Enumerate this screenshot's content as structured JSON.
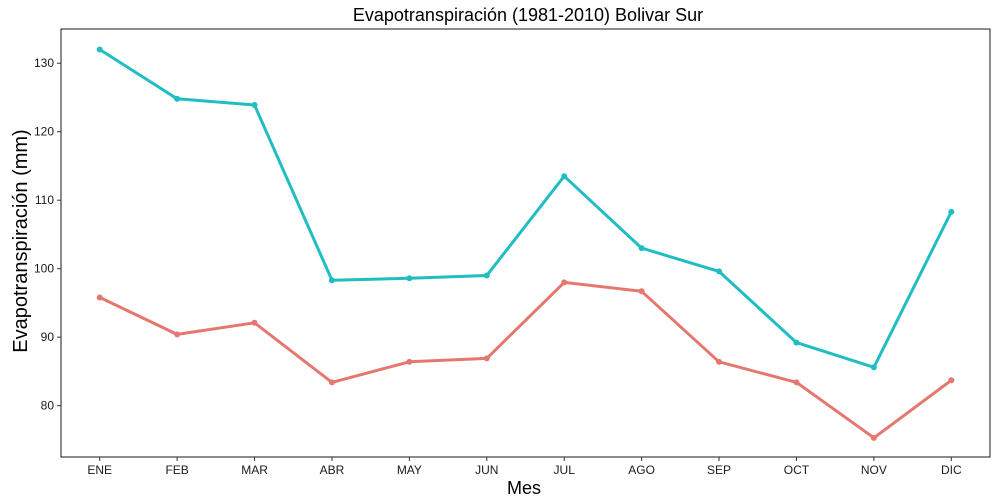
{
  "chart_data": {
    "type": "line",
    "title": "Evapotranspiración (1981-2010)  Bolivar Sur",
    "xlabel": "Mes",
    "ylabel": "Evapotranspiración (mm)",
    "categories": [
      "ENE",
      "FEB",
      "MAR",
      "ABR",
      "MAY",
      "JUN",
      "JUL",
      "AGO",
      "SEP",
      "OCT",
      "NOV",
      "DIC"
    ],
    "ylim": [
      72.5,
      135
    ],
    "yticks": [
      80,
      90,
      100,
      110,
      120,
      130
    ],
    "grid": false,
    "legend": "none",
    "series": [
      {
        "color": "#20BDC3",
        "values": [
          132.0,
          124.8,
          123.9,
          98.3,
          98.6,
          99.0,
          113.5,
          103.0,
          99.6,
          89.2,
          85.6,
          108.3
        ]
      },
      {
        "color": "#E5776F",
        "values": [
          95.8,
          90.4,
          92.1,
          83.4,
          86.4,
          86.9,
          98.0,
          96.7,
          86.4,
          83.4,
          75.3,
          83.7
        ]
      }
    ]
  }
}
